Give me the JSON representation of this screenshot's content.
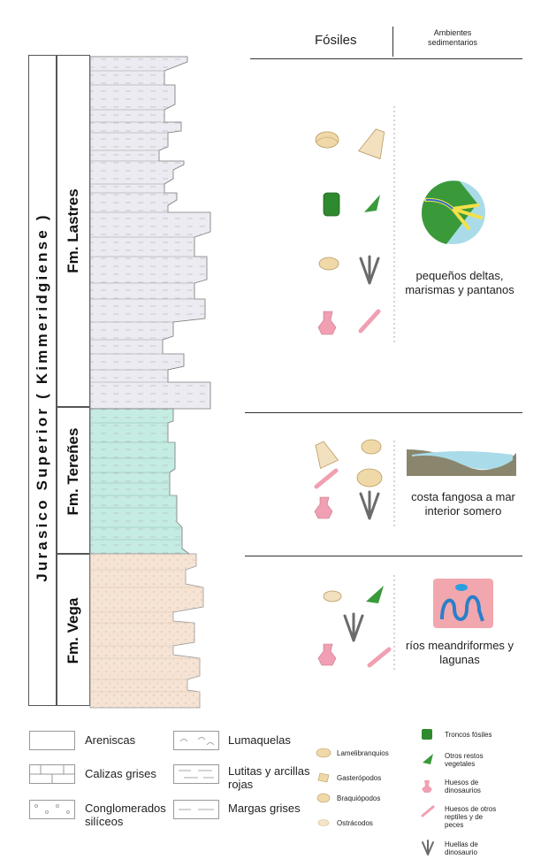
{
  "header": {
    "fossils": "Fósiles",
    "environments": "Ambientes sedimentarios"
  },
  "column": {
    "period": "Jurasico Superior ( Kimmeridgiense )",
    "formations": [
      "Fm. Lastres",
      "Fm. Tereñes",
      "Fm. Vega"
    ]
  },
  "colors": {
    "lastres": "#ecebf1",
    "terenes": "#c4ece2",
    "vega": "#f6e3d3"
  },
  "environments": [
    "pequeños deltas, marismas y pantanos",
    "costa fangosa  a mar interior somero",
    "ríos meandriformes y lagunas"
  ],
  "legend_lithology": [
    "Areniscas",
    "Calizas grises",
    "Conglomerados silíceos",
    "Lumaquelas",
    "Lutitas y arcillas rojas",
    "Margas grises"
  ],
  "legend_fossils": [
    "Lamelibranquios",
    "Gasterópodos",
    "Braquiópodos",
    "Ostrácodos",
    "Troncos fósiles",
    "Otros restos vegetales",
    "Huesos de dinosaurios",
    "Huesos de otros reptiles y de peces",
    "Huellas de dinosaurio"
  ]
}
